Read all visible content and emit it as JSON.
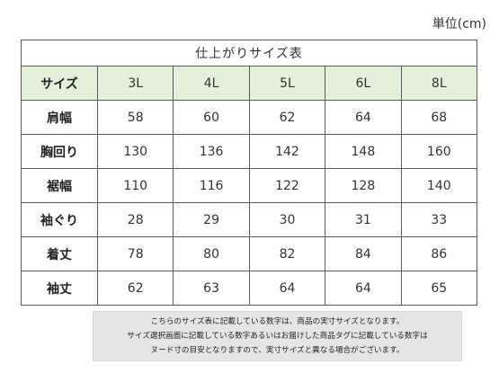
{
  "unit": "単位(cm)",
  "table": {
    "title": "仕上がりサイズ表",
    "header_label": "サイズ",
    "sizes": [
      "3L",
      "4L",
      "5L",
      "6L",
      "8L"
    ],
    "rows": [
      {
        "label": "肩幅",
        "values": [
          "58",
          "60",
          "62",
          "64",
          "68"
        ]
      },
      {
        "label": "胸回り",
        "values": [
          "130",
          "136",
          "142",
          "148",
          "160"
        ]
      },
      {
        "label": "裾幅",
        "values": [
          "110",
          "116",
          "122",
          "128",
          "140"
        ]
      },
      {
        "label": "袖ぐり",
        "values": [
          "28",
          "29",
          "30",
          "31",
          "33"
        ]
      },
      {
        "label": "着丈",
        "values": [
          "78",
          "80",
          "82",
          "84",
          "86"
        ]
      },
      {
        "label": "袖丈",
        "values": [
          "62",
          "63",
          "64",
          "64",
          "65"
        ]
      }
    ]
  },
  "note": {
    "lines": [
      "こちらのサイズ表に記載している数字は、商品の実寸サイズとなります。",
      "サイズ選択画面に記載している数字あるいはお届けした商品タグに記載している数字は",
      "ヌード寸の目安となりますので、実寸サイズと異なる場合がございます。"
    ]
  },
  "colors": {
    "header_background": "#e4f0d9",
    "note_background": "#e5e5e5",
    "border": "#5a5a5a"
  }
}
